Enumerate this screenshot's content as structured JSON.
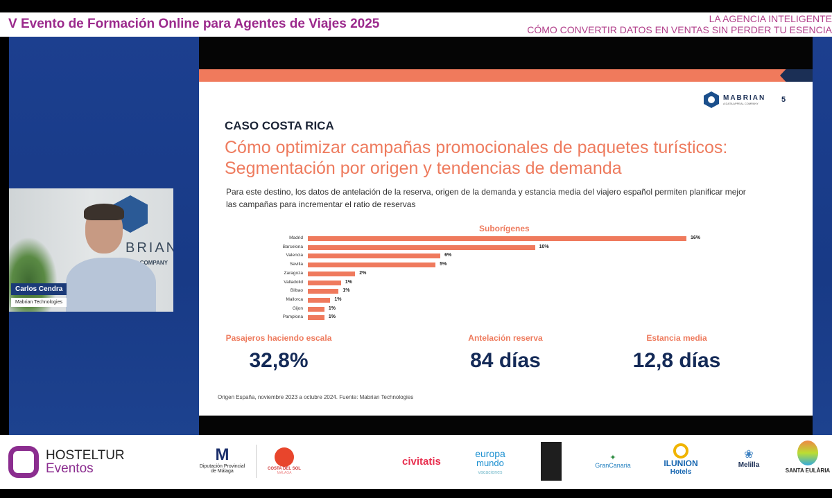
{
  "header": {
    "event_title": "V Evento de Formación Online para Agentes de Viajes 2025",
    "session_line1": "LA AGENCIA INTELIGENTE",
    "session_line2": "CÓMO CONVERTIR DATOS EN VENTAS SIN PERDER TU ESENCIA"
  },
  "slide": {
    "logo_text": "MABRIAN",
    "logo_sub": "A DATA APPEAL COMPANY",
    "page_number": "5",
    "case_label": "CASO COSTA RICA",
    "headline": "Cómo optimizar campañas promocionales de paquetes turísticos: Segmentación por origen y tendencias de demanda",
    "intro": "Para este destino, los datos de antelación de la reserva, origen de la demanda y estancia media del viajero español permiten planificar mejor las campañas para incrementar el ratio de reservas",
    "kpis": [
      {
        "label": "Pasajeros haciendo escala",
        "value": "32,8%"
      },
      {
        "label": "Antelación reserva",
        "value": "84 días"
      },
      {
        "label": "Estancia media",
        "value": "12,8 días"
      }
    ],
    "source": "Origen España, noviembre 2023 a octubre 2024. Fuente: Mabrian Technologies",
    "colors": {
      "accent": "#ef7a5d",
      "navy": "#142a57"
    }
  },
  "chart_data": {
    "type": "bar",
    "orientation": "horizontal",
    "title": "Suborígenes",
    "categories": [
      "Madrid",
      "Barcelona",
      "Valencia",
      "Sevilla",
      "Zaragoza",
      "Valladolid",
      "Bilbao",
      "Mallorca",
      "Gijon",
      "Pamplona"
    ],
    "values": [
      16,
      9.6,
      5.6,
      5.4,
      2.0,
      1.4,
      1.3,
      0.95,
      0.7,
      0.7
    ],
    "data_labels": [
      "16%",
      "10%",
      "6%",
      "5%",
      "2%",
      "1%",
      "1%",
      "1%",
      "1%",
      "1%"
    ],
    "xlim": [
      0,
      16
    ],
    "grid": false
  },
  "webcam": {
    "speaker_name": "Carlos Cendra",
    "speaker_company": "Mabrian Technologies",
    "bg_logo_text": "BRIAN",
    "bg_logo_sub": "PPEAL COMPANY"
  },
  "footer": {
    "sponsors": [
      "HOSTELTUR",
      "Eventos",
      "Diputación Provincial de Málaga",
      "COSTA DEL SOL",
      "MÁLAGA",
      "civitatis",
      "europa",
      "mundo",
      "vacaciones",
      "GranCanaria",
      "ILUNION",
      "Hotels",
      "Melilla",
      "SANTA EULÀRIA"
    ]
  }
}
